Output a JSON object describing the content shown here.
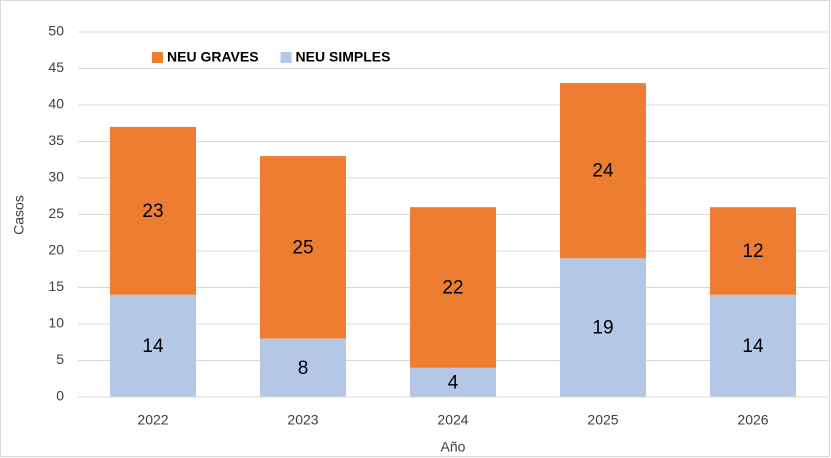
{
  "chart_data": {
    "type": "stacked_bar",
    "categories": [
      "2022",
      "2023",
      "2024",
      "2025",
      "2026"
    ],
    "series": [
      {
        "name": "NEU SIMPLES",
        "color": "#b4c7e7",
        "values": [
          14,
          8,
          4,
          19,
          14
        ]
      },
      {
        "name": "NEU GRAVES",
        "color": "#ed7d31",
        "values": [
          23,
          25,
          22,
          24,
          12
        ]
      }
    ],
    "xlabel": "Año",
    "ylabel": "Casos",
    "ylim": [
      0,
      50
    ],
    "yticks": [
      0,
      5,
      10,
      15,
      20,
      25,
      30,
      35,
      40,
      45,
      50
    ],
    "grid": true
  }
}
